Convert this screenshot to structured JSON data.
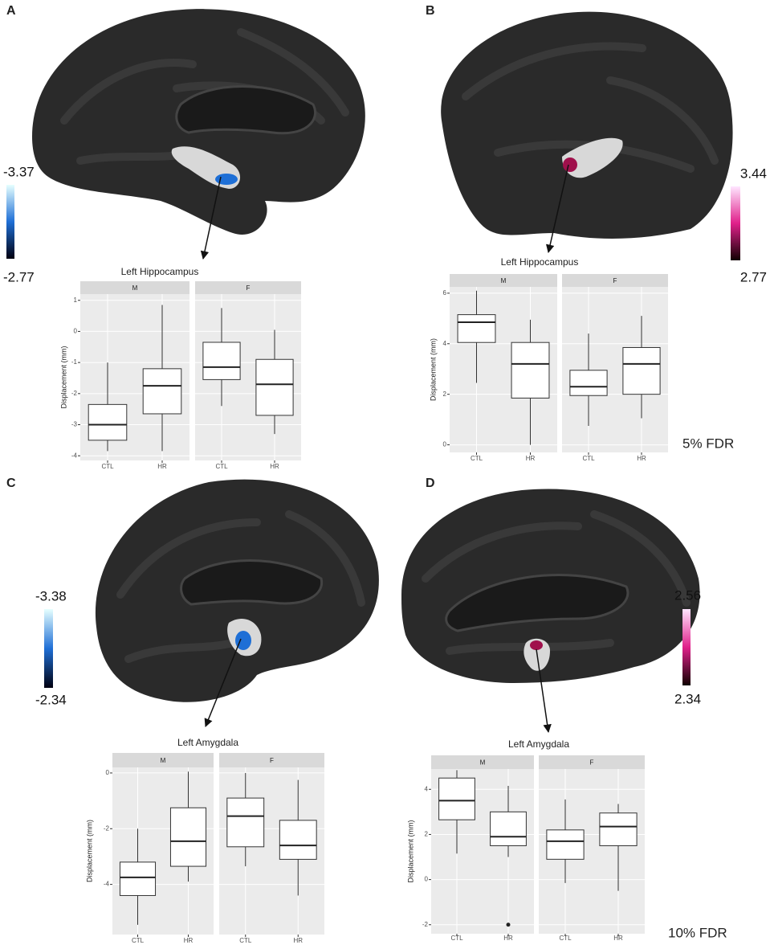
{
  "chart_data": [
    {
      "type": "box",
      "panel": "A",
      "title": "Left Hippocampus",
      "y_label": "Displacement (mm)",
      "categories": [
        "CTL",
        "HR"
      ],
      "ylim": [
        -4.15,
        1.2
      ],
      "yticks": [
        1,
        0,
        -1,
        -2,
        -3,
        -4
      ],
      "grid": true,
      "colorbar": [
        -3.37,
        -2.77
      ],
      "colorbar_colors": [
        "#e6ffff",
        "#1f6fd6",
        "#000010"
      ],
      "series": [
        {
          "name": "M",
          "values": [
            {
              "min": -3.85,
              "q1": -3.5,
              "median": -3.0,
              "q3": -2.35,
              "max": -1.0
            },
            {
              "min": -3.85,
              "q1": -2.65,
              "median": -1.75,
              "q3": -1.2,
              "max": 0.85
            }
          ]
        },
        {
          "name": "F",
          "values": [
            {
              "min": -2.4,
              "q1": -1.55,
              "median": -1.15,
              "q3": -0.35,
              "max": 0.75
            },
            {
              "min": -3.3,
              "q1": -2.7,
              "median": -1.7,
              "q3": -0.9,
              "max": 0.05
            }
          ]
        }
      ]
    },
    {
      "type": "box",
      "panel": "B",
      "title": "Left Hippocampus",
      "y_label": "Displacement (mm)",
      "note": "5% FDR",
      "categories": [
        "CTL",
        "HR"
      ],
      "ylim": [
        -0.3,
        6.25
      ],
      "yticks": [
        6,
        4,
        2,
        0
      ],
      "grid": true,
      "colorbar": [
        3.44,
        2.77
      ],
      "colorbar_colors": [
        "#ffe6ff",
        "#e0208a",
        "#100000"
      ],
      "series": [
        {
          "name": "M",
          "values": [
            {
              "min": 2.45,
              "q1": 4.05,
              "median": 4.85,
              "q3": 5.15,
              "max": 6.1
            },
            {
              "min": 0,
              "q1": 1.85,
              "median": 3.2,
              "q3": 4.05,
              "max": 4.95
            }
          ]
        },
        {
          "name": "F",
          "values": [
            {
              "min": 0.75,
              "q1": 1.95,
              "median": 2.3,
              "q3": 2.95,
              "max": 4.4
            },
            {
              "min": 1.05,
              "q1": 2.0,
              "median": 3.2,
              "q3": 3.85,
              "max": 5.1
            }
          ]
        }
      ]
    },
    {
      "type": "box",
      "panel": "C",
      "title": "Left Amygdala",
      "y_label": "Displacement (mm)",
      "categories": [
        "CTL",
        "HR"
      ],
      "ylim": [
        -5.8,
        0.2
      ],
      "yticks": [
        0,
        -2,
        -4
      ],
      "grid": true,
      "colorbar": [
        -3.38,
        -2.34
      ],
      "colorbar_colors": [
        "#e6ffff",
        "#1f6fd6",
        "#000010"
      ],
      "series": [
        {
          "name": "M",
          "values": [
            {
              "min": -5.45,
              "q1": -4.4,
              "median": -3.75,
              "q3": -3.2,
              "max": -2.0
            },
            {
              "min": -3.9,
              "q1": -3.35,
              "median": -2.45,
              "q3": -1.25,
              "max": 0.05
            }
          ]
        },
        {
          "name": "F",
          "values": [
            {
              "min": -3.35,
              "q1": -2.65,
              "median": -1.55,
              "q3": -0.9,
              "max": 0
            },
            {
              "min": -4.4,
              "q1": -3.1,
              "median": -2.6,
              "q3": -1.7,
              "max": -0.25
            }
          ]
        }
      ]
    },
    {
      "type": "box",
      "panel": "D",
      "title": "Left Amygdala",
      "y_label": "Displacement (mm)",
      "note": "10% FDR",
      "categories": [
        "CTL",
        "HR"
      ],
      "ylim": [
        -2.4,
        4.9
      ],
      "yticks": [
        4,
        2,
        0,
        -2
      ],
      "grid": true,
      "colorbar": [
        2.56,
        2.34
      ],
      "colorbar_colors": [
        "#ffe6ff",
        "#e0208a",
        "#100000"
      ],
      "series": [
        {
          "name": "M",
          "values": [
            {
              "min": 1.15,
              "q1": 2.65,
              "median": 3.5,
              "q3": 4.5,
              "max": 4.85
            },
            {
              "min": 1.0,
              "q1": 1.5,
              "median": 1.9,
              "q3": 3.0,
              "max": 4.15,
              "outliers": [
                -2.0
              ]
            }
          ]
        },
        {
          "name": "F",
          "values": [
            {
              "min": -0.15,
              "q1": 0.9,
              "median": 1.7,
              "q3": 2.2,
              "max": 3.55
            },
            {
              "min": -0.5,
              "q1": 1.5,
              "median": 2.35,
              "q3": 2.95,
              "max": 3.35
            }
          ]
        }
      ]
    }
  ]
}
